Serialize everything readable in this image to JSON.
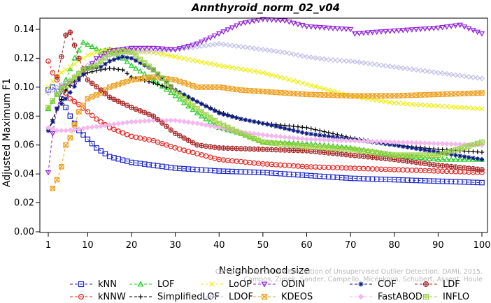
{
  "chart_data": {
    "type": "line",
    "title": "Annthyroid_norm_02_v04",
    "xlabel": "Neighborhood size",
    "ylabel": "Adjusted Maximum F1",
    "xlim": [
      1,
      100
    ],
    "ylim": [
      0,
      0.15
    ],
    "x_ticks": [
      1,
      10,
      20,
      30,
      40,
      50,
      60,
      70,
      80,
      90,
      100
    ],
    "y_ticks": [
      "0.00",
      "0.02",
      "0.04",
      "0.06",
      "0.08",
      "0.10",
      "0.12",
      "0.14"
    ],
    "grid": false,
    "legend_position": "bottom",
    "watermark": [
      "Campos et al. On the Evaluation of Unsupervised Outlier Detection. DAMI, 2015.",
      "Campos, Zimek, Sander, Campello, Micenkova, Schubert, Assent, Houle"
    ],
    "series": [
      {
        "name": "kNN",
        "color": "#1f28c8",
        "marker": "square",
        "dash": "4,3",
        "keypoints": [
          [
            1,
            0.098
          ],
          [
            2,
            0.1
          ],
          [
            3,
            0.097
          ],
          [
            4,
            0.092
          ],
          [
            5,
            0.086
          ],
          [
            6,
            0.08
          ],
          [
            7,
            0.075
          ],
          [
            8,
            0.07
          ],
          [
            10,
            0.064
          ],
          [
            12,
            0.058
          ],
          [
            15,
            0.052
          ],
          [
            20,
            0.048
          ],
          [
            25,
            0.046
          ],
          [
            30,
            0.044
          ],
          [
            40,
            0.042
          ],
          [
            50,
            0.041
          ],
          [
            60,
            0.039
          ],
          [
            70,
            0.037
          ],
          [
            80,
            0.036
          ],
          [
            90,
            0.035
          ],
          [
            100,
            0.034
          ]
        ]
      },
      {
        "name": "kNNW",
        "color": "#e8231f",
        "marker": "circle",
        "dash": "4,3",
        "keypoints": [
          [
            1,
            0.118
          ],
          [
            2,
            0.11
          ],
          [
            3,
            0.105
          ],
          [
            4,
            0.1
          ],
          [
            5,
            0.096
          ],
          [
            6,
            0.092
          ],
          [
            8,
            0.088
          ],
          [
            10,
            0.083
          ],
          [
            12,
            0.078
          ],
          [
            15,
            0.072
          ],
          [
            20,
            0.066
          ],
          [
            25,
            0.063
          ],
          [
            30,
            0.058
          ],
          [
            40,
            0.05
          ],
          [
            50,
            0.047
          ],
          [
            60,
            0.045
          ],
          [
            70,
            0.044
          ],
          [
            80,
            0.043
          ],
          [
            90,
            0.042
          ],
          [
            100,
            0.041
          ]
        ]
      },
      {
        "name": "LOF",
        "color": "#22cc22",
        "marker": "triangle",
        "dash": "4,3",
        "keypoints": [
          [
            1,
            0.085
          ],
          [
            3,
            0.095
          ],
          [
            5,
            0.105
          ],
          [
            7,
            0.12
          ],
          [
            9,
            0.131
          ],
          [
            11,
            0.128
          ],
          [
            13,
            0.125
          ],
          [
            15,
            0.126
          ],
          [
            18,
            0.12
          ],
          [
            20,
            0.115
          ],
          [
            25,
            0.105
          ],
          [
            30,
            0.094
          ],
          [
            35,
            0.082
          ],
          [
            40,
            0.072
          ],
          [
            45,
            0.068
          ],
          [
            50,
            0.062
          ],
          [
            60,
            0.061
          ],
          [
            70,
            0.058
          ],
          [
            80,
            0.053
          ],
          [
            90,
            0.05
          ],
          [
            100,
            0.05
          ]
        ]
      },
      {
        "name": "SimplifiedLOF",
        "color": "#000000",
        "marker": "plus",
        "dash": "4,3",
        "keypoints": [
          [
            1,
            0.07
          ],
          [
            3,
            0.085
          ],
          [
            5,
            0.098
          ],
          [
            8,
            0.107
          ],
          [
            10,
            0.11
          ],
          [
            13,
            0.112
          ],
          [
            15,
            0.113
          ],
          [
            18,
            0.112
          ],
          [
            20,
            0.107
          ],
          [
            25,
            0.103
          ],
          [
            30,
            0.098
          ],
          [
            35,
            0.09
          ],
          [
            40,
            0.083
          ],
          [
            45,
            0.078
          ],
          [
            50,
            0.075
          ],
          [
            60,
            0.072
          ],
          [
            70,
            0.065
          ],
          [
            80,
            0.06
          ],
          [
            90,
            0.057
          ],
          [
            100,
            0.055
          ]
        ]
      },
      {
        "name": "LoOP",
        "color": "#eeee10",
        "marker": "x",
        "dash": "4,3",
        "keypoints": [
          [
            1,
            0.1
          ],
          [
            3,
            0.108
          ],
          [
            5,
            0.112
          ],
          [
            8,
            0.118
          ],
          [
            10,
            0.122
          ],
          [
            13,
            0.125
          ],
          [
            15,
            0.126
          ],
          [
            20,
            0.125
          ],
          [
            25,
            0.124
          ],
          [
            30,
            0.121
          ],
          [
            35,
            0.118
          ],
          [
            40,
            0.115
          ],
          [
            50,
            0.11
          ],
          [
            60,
            0.102
          ],
          [
            70,
            0.094
          ],
          [
            80,
            0.089
          ],
          [
            90,
            0.087
          ],
          [
            100,
            0.085
          ]
        ]
      },
      {
        "name": "LDOF",
        "color": "#c0c0e8",
        "marker": "diamond",
        "dash": "4,3",
        "keypoints": [
          [
            1,
            0.096
          ],
          [
            3,
            0.1
          ],
          [
            6,
            0.105
          ],
          [
            10,
            0.115
          ],
          [
            13,
            0.12
          ],
          [
            15,
            0.122
          ],
          [
            20,
            0.125
          ],
          [
            25,
            0.125
          ],
          [
            30,
            0.126
          ],
          [
            35,
            0.128
          ],
          [
            40,
            0.13
          ],
          [
            45,
            0.128
          ],
          [
            50,
            0.126
          ],
          [
            55,
            0.124
          ],
          [
            60,
            0.121
          ],
          [
            65,
            0.119
          ],
          [
            70,
            0.118
          ],
          [
            75,
            0.116
          ],
          [
            80,
            0.114
          ],
          [
            90,
            0.11
          ],
          [
            100,
            0.106
          ]
        ]
      },
      {
        "name": "ODIN",
        "color": "#9020d8",
        "marker": "triangle-down",
        "dash": "4,3",
        "keypoints": [
          [
            1,
            0.041
          ],
          [
            2,
            0.068
          ],
          [
            3,
            0.085
          ],
          [
            4,
            0.097
          ],
          [
            5,
            0.101
          ],
          [
            7,
            0.104
          ],
          [
            9,
            0.109
          ],
          [
            12,
            0.12
          ],
          [
            15,
            0.125
          ],
          [
            20,
            0.127
          ],
          [
            25,
            0.127
          ],
          [
            30,
            0.126
          ],
          [
            35,
            0.13
          ],
          [
            40,
            0.137
          ],
          [
            45,
            0.144
          ],
          [
            50,
            0.147
          ],
          [
            55,
            0.146
          ],
          [
            60,
            0.142
          ],
          [
            65,
            0.141
          ],
          [
            70,
            0.14
          ],
          [
            71,
            0.137
          ],
          [
            75,
            0.138
          ],
          [
            80,
            0.139
          ],
          [
            90,
            0.141
          ],
          [
            95,
            0.143
          ],
          [
            100,
            0.137
          ]
        ]
      },
      {
        "name": "KDEOS",
        "color": "#eea020",
        "marker": "square-x",
        "dash": "4,3",
        "keypoints": [
          [
            2,
            0.03
          ],
          [
            3,
            0.036
          ],
          [
            4,
            0.045
          ],
          [
            5,
            0.06
          ],
          [
            6,
            0.065
          ],
          [
            8,
            0.083
          ],
          [
            10,
            0.092
          ],
          [
            13,
            0.096
          ],
          [
            15,
            0.1
          ],
          [
            20,
            0.105
          ],
          [
            25,
            0.107
          ],
          [
            30,
            0.105
          ],
          [
            35,
            0.1
          ],
          [
            40,
            0.1
          ],
          [
            45,
            0.098
          ],
          [
            50,
            0.097
          ],
          [
            60,
            0.095
          ],
          [
            70,
            0.094
          ],
          [
            80,
            0.094
          ],
          [
            90,
            0.095
          ],
          [
            100,
            0.096
          ]
        ]
      },
      {
        "name": "COF",
        "color": "#0a1a80",
        "marker": "asterisk",
        "dash": "4,3",
        "keypoints": [
          [
            1,
            0.07
          ],
          [
            2,
            0.076
          ],
          [
            3,
            0.085
          ],
          [
            5,
            0.092
          ],
          [
            8,
            0.105
          ],
          [
            10,
            0.113
          ],
          [
            13,
            0.114
          ],
          [
            15,
            0.118
          ],
          [
            18,
            0.121
          ],
          [
            20,
            0.12
          ],
          [
            25,
            0.112
          ],
          [
            30,
            0.098
          ],
          [
            35,
            0.09
          ],
          [
            40,
            0.082
          ],
          [
            45,
            0.078
          ],
          [
            50,
            0.075
          ],
          [
            60,
            0.068
          ],
          [
            70,
            0.064
          ],
          [
            80,
            0.06
          ],
          [
            90,
            0.055
          ],
          [
            100,
            0.05
          ]
        ]
      },
      {
        "name": "FastABOD",
        "color": "#f4b8ee",
        "marker": "diamond-filled",
        "dash": "4,3",
        "keypoints": [
          [
            1,
            0.072
          ],
          [
            3,
            0.07
          ],
          [
            5,
            0.07
          ],
          [
            8,
            0.071
          ],
          [
            10,
            0.072
          ],
          [
            13,
            0.073
          ],
          [
            15,
            0.074
          ],
          [
            20,
            0.076
          ],
          [
            25,
            0.077
          ],
          [
            30,
            0.077
          ],
          [
            35,
            0.075
          ],
          [
            40,
            0.072
          ],
          [
            45,
            0.069
          ],
          [
            50,
            0.067
          ],
          [
            60,
            0.064
          ],
          [
            70,
            0.063
          ],
          [
            80,
            0.062
          ],
          [
            90,
            0.061
          ],
          [
            100,
            0.06
          ]
        ]
      },
      {
        "name": "LDF",
        "color": "#a82828",
        "marker": "circle-plus",
        "dash": "4,3",
        "keypoints": [
          [
            3,
            0.107
          ],
          [
            4,
            0.121
          ],
          [
            5,
            0.136
          ],
          [
            6,
            0.138
          ],
          [
            8,
            0.12
          ],
          [
            10,
            0.105
          ],
          [
            13,
            0.098
          ],
          [
            15,
            0.093
          ],
          [
            20,
            0.086
          ],
          [
            25,
            0.08
          ],
          [
            30,
            0.068
          ],
          [
            35,
            0.06
          ],
          [
            40,
            0.058
          ],
          [
            50,
            0.057
          ],
          [
            60,
            0.056
          ],
          [
            70,
            0.053
          ],
          [
            80,
            0.05
          ],
          [
            90,
            0.046
          ],
          [
            100,
            0.043
          ]
        ]
      },
      {
        "name": "INFLO",
        "color": "#98d040",
        "marker": "square-o",
        "dash": "4,3",
        "keypoints": [
          [
            1,
            0.086
          ],
          [
            3,
            0.095
          ],
          [
            6,
            0.104
          ],
          [
            9,
            0.112
          ],
          [
            12,
            0.115
          ],
          [
            15,
            0.123
          ],
          [
            18,
            0.125
          ],
          [
            20,
            0.124
          ],
          [
            25,
            0.112
          ],
          [
            30,
            0.097
          ],
          [
            35,
            0.085
          ],
          [
            40,
            0.075
          ],
          [
            45,
            0.068
          ],
          [
            50,
            0.062
          ],
          [
            60,
            0.059
          ],
          [
            70,
            0.057
          ],
          [
            80,
            0.053
          ],
          [
            90,
            0.053
          ],
          [
            100,
            0.062
          ]
        ]
      }
    ]
  }
}
